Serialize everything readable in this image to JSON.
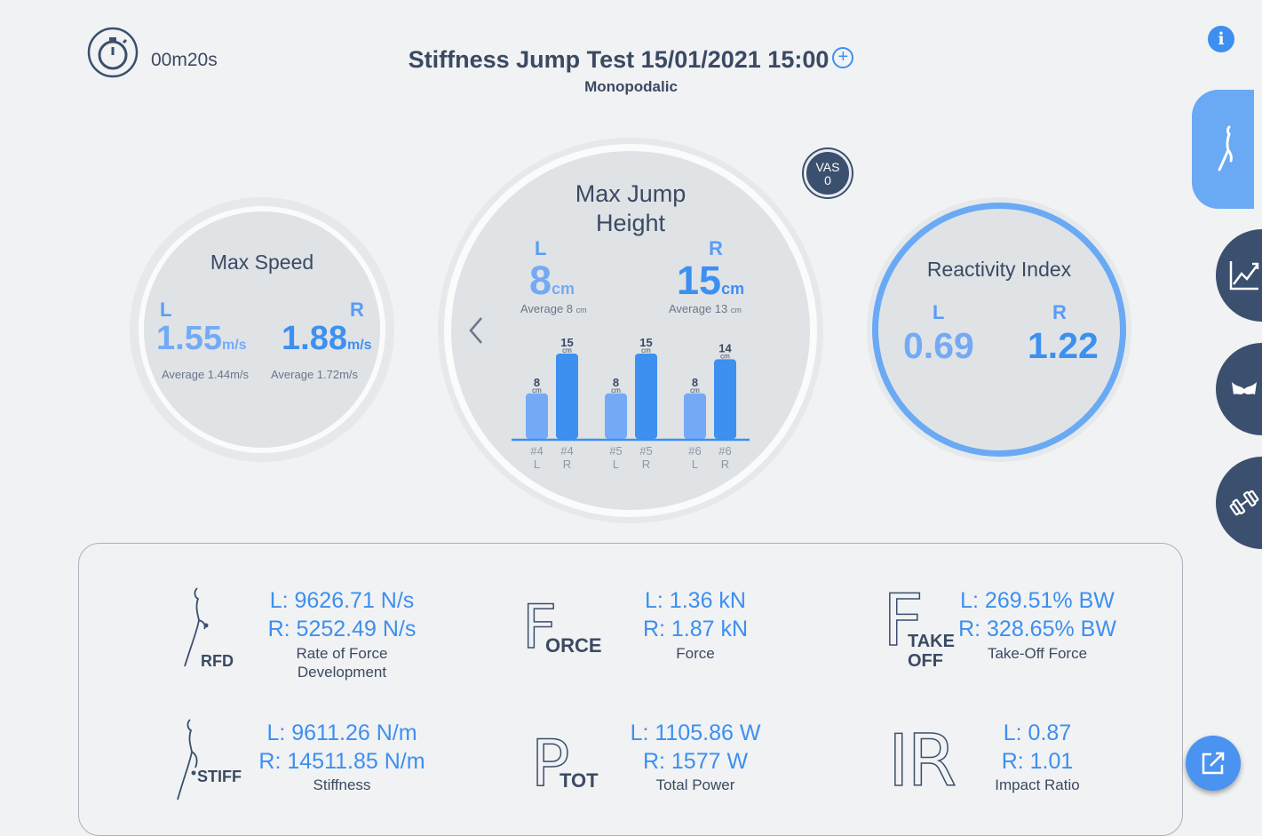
{
  "header": {
    "timer": "00m20s",
    "title": "Stiffness Jump Test 15/01/2021 15:00",
    "subtitle": "Monopodalic"
  },
  "icons": {
    "timer": "stopwatch-icon",
    "info": "info-icon",
    "add": "plus-circle-icon",
    "nav": [
      "jump-figure-icon",
      "line-chart-icon",
      "pelvis-icon",
      "dumbbell-icon"
    ],
    "export": "external-link-icon"
  },
  "colors": {
    "accent": "#3d8ff0",
    "accent_light": "#74aaf5",
    "navy": "#3b4f6e",
    "active_tab": "#6aa9f4"
  },
  "max_speed": {
    "title": "Max Speed",
    "left_label": "L",
    "right_label": "R",
    "left_value": "1.55",
    "right_value": "1.88",
    "unit": "m/s",
    "left_avg": "Average 1.44m/s",
    "right_avg": "Average 1.72m/s"
  },
  "max_jump": {
    "title_line1": "Max Jump",
    "title_line2": "Height",
    "left_label": "L",
    "right_label": "R",
    "left_value": "8",
    "right_value": "15",
    "unit": "cm",
    "left_avg": "Average 8",
    "right_avg": "Average 13",
    "avg_unit": "cm"
  },
  "vas": {
    "label": "VAS",
    "value": "0"
  },
  "reactivity": {
    "title": "Reactivity Index",
    "left_label": "L",
    "right_label": "R",
    "left_value": "0.69",
    "right_value": "1.22"
  },
  "chart_data": {
    "type": "bar",
    "categories": [
      "#4 L",
      "#4 R",
      "#5 L",
      "#5 R",
      "#6 L",
      "#6 R"
    ],
    "values": [
      8,
      15,
      8,
      15,
      8,
      14
    ],
    "unit": "cm",
    "colors": [
      "#74aaf5",
      "#3d8ff0",
      "#74aaf5",
      "#3d8ff0",
      "#74aaf5",
      "#3d8ff0"
    ],
    "ylim": [
      0,
      16
    ]
  },
  "metrics": {
    "rfd": {
      "icon_label": "RFD",
      "l": "L: 9626.71 N/s",
      "r": "R: 5252.49 N/s",
      "name1": "Rate of Force",
      "name2": "Development"
    },
    "force": {
      "icon_big": "F",
      "icon_label": "ORCE",
      "l": "L: 1.36 kN",
      "r": "R: 1.87 kN",
      "name": "Force"
    },
    "takeoff": {
      "icon_big": "F",
      "icon_label1": "TAKE",
      "icon_label2": "OFF",
      "l": "L: 269.51% BW",
      "r": "R: 328.65% BW",
      "name": "Take-Off Force"
    },
    "stiff": {
      "icon_label": "STIFF",
      "l": "L: 9611.26 N/m",
      "r": "R: 14511.85 N/m",
      "name": "Stiffness"
    },
    "power": {
      "icon_big": "P",
      "icon_label": "TOT",
      "l": "L: 1105.86 W",
      "r": "R: 1577 W",
      "name": "Total Power"
    },
    "impact": {
      "icon_big": "IR",
      "l": "L: 0.87",
      "r": "R: 1.01",
      "name": "Impact Ratio"
    }
  }
}
